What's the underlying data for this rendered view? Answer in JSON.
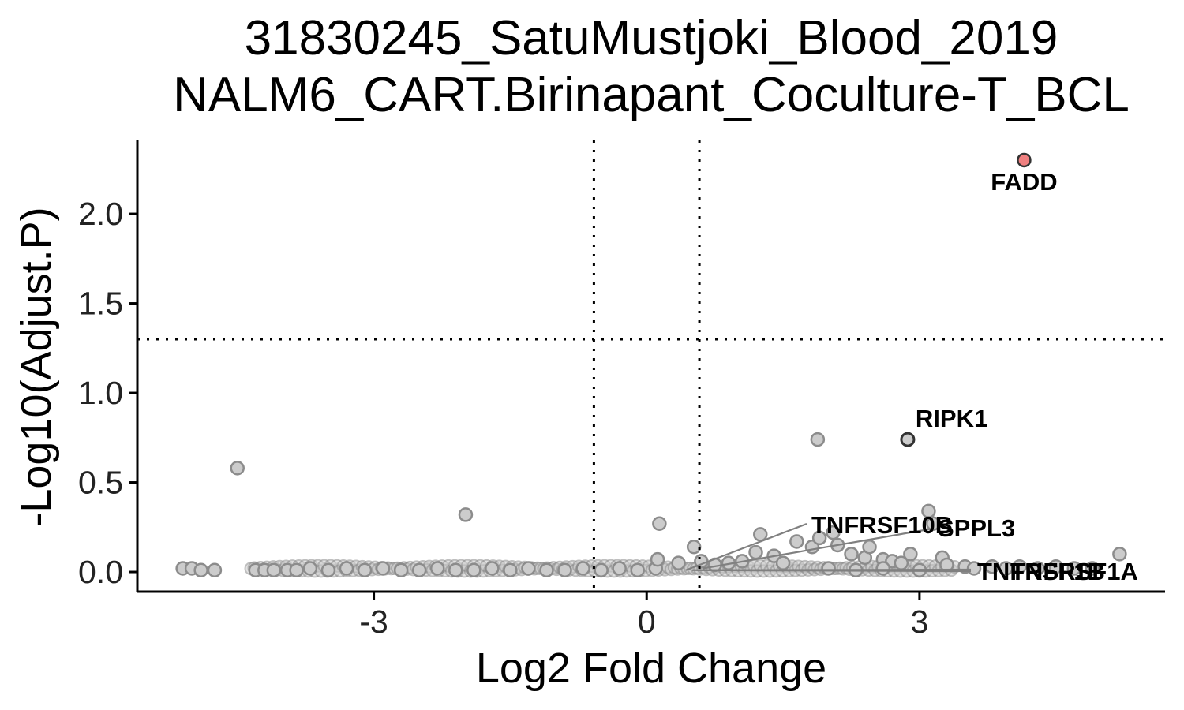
{
  "chart_data": {
    "type": "scatter",
    "title_lines": [
      "31830245_SatuMustjoki_Blood_2019",
      "NALM6_CART.Birinapant_Coculture-T_BCL"
    ],
    "xlabel": "Log2 Fold Change",
    "ylabel": "-Log10(Adjust.P)",
    "xlim": [
      -5.6,
      5.7
    ],
    "ylim": [
      -0.11,
      2.41
    ],
    "x_ticks": [
      -3,
      0,
      3
    ],
    "x_tick_labels": [
      "-3",
      "0",
      "3"
    ],
    "y_ticks": [
      0.0,
      0.5,
      1.0,
      1.5,
      2.0
    ],
    "y_tick_labels": [
      "0.0",
      "0.5",
      "1.0",
      "1.5",
      "2.0"
    ],
    "thresholds": {
      "x": [
        -0.58,
        0.58
      ],
      "y": 1.3
    },
    "grid": false,
    "colors": {
      "significant": "#f08080",
      "highlighted_outline": "#333333",
      "background_fill": "#cccccc",
      "background_outline": "#8c8c8c",
      "threshold_line": "#000000",
      "connector": "#808080"
    },
    "points": [
      [
        -5.1,
        0.02
      ],
      [
        -5.0,
        0.02
      ],
      [
        -4.9,
        0.01
      ],
      [
        -4.75,
        0.01
      ],
      [
        -4.5,
        0.58
      ],
      [
        -4.3,
        0.01
      ],
      [
        -4.2,
        0.01
      ],
      [
        -4.1,
        0.01
      ],
      [
        -3.95,
        0.01
      ],
      [
        -3.85,
        0.01
      ],
      [
        -3.7,
        0.02
      ],
      [
        -3.5,
        0.01
      ],
      [
        -3.3,
        0.02
      ],
      [
        -3.1,
        0.01
      ],
      [
        -2.9,
        0.02
      ],
      [
        -2.7,
        0.01
      ],
      [
        -2.5,
        0.01
      ],
      [
        -2.3,
        0.02
      ],
      [
        -2.1,
        0.01
      ],
      [
        -1.99,
        0.32
      ],
      [
        -1.9,
        0.01
      ],
      [
        -1.7,
        0.02
      ],
      [
        -1.5,
        0.01
      ],
      [
        -1.3,
        0.02
      ],
      [
        -1.1,
        0.01
      ],
      [
        -0.9,
        0.01
      ],
      [
        -0.7,
        0.02
      ],
      [
        -0.5,
        0.01
      ],
      [
        -0.3,
        0.02
      ],
      [
        -0.1,
        0.01
      ],
      [
        0.1,
        0.02
      ],
      [
        0.14,
        0.27
      ],
      [
        0.12,
        0.07
      ],
      [
        0.35,
        0.05
      ],
      [
        0.52,
        0.14
      ],
      [
        0.6,
        0.06
      ],
      [
        0.75,
        0.04
      ],
      [
        0.9,
        0.05
      ],
      [
        1.05,
        0.06
      ],
      [
        1.2,
        0.11
      ],
      [
        1.25,
        0.21
      ],
      [
        1.4,
        0.09
      ],
      [
        1.5,
        0.05
      ],
      [
        1.65,
        0.17
      ],
      [
        1.82,
        0.14
      ],
      [
        1.9,
        0.19
      ],
      [
        2.05,
        0.22
      ],
      [
        2.1,
        0.15
      ],
      [
        2.25,
        0.1
      ],
      [
        2.4,
        0.08
      ],
      [
        2.45,
        0.14
      ],
      [
        2.6,
        0.07
      ],
      [
        2.7,
        0.06
      ],
      [
        2.8,
        0.05
      ],
      [
        1.88,
        0.74
      ],
      [
        2.9,
        0.1
      ],
      [
        3.1,
        0.34
      ],
      [
        3.15,
        0.27
      ],
      [
        3.25,
        0.08
      ],
      [
        3.3,
        0.04
      ],
      [
        3.5,
        0.03
      ],
      [
        3.6,
        0.02
      ],
      [
        3.8,
        0.03
      ],
      [
        3.95,
        0.02
      ],
      [
        4.1,
        0.03
      ],
      [
        4.3,
        0.02
      ],
      [
        4.5,
        0.03
      ],
      [
        4.7,
        0.02
      ],
      [
        4.9,
        0.02
      ],
      [
        5.2,
        0.1
      ],
      [
        2.0,
        0.02
      ],
      [
        2.3,
        0.01
      ],
      [
        2.6,
        0.02
      ],
      [
        3.0,
        0.01
      ]
    ],
    "labeled_points": [
      {
        "label": "FADD",
        "x": 4.15,
        "y": 2.3,
        "significant": true
      },
      {
        "label": "RIPK1",
        "x": 2.87,
        "y": 0.74,
        "significant": false
      },
      {
        "label": "TNFRSF10B",
        "x": 0.43,
        "y": 0.01,
        "significant": false
      },
      {
        "label": "SPPL3",
        "x": 0.62,
        "y": 0.02,
        "significant": false
      },
      {
        "label": "TNFRSF1A",
        "x": 0.55,
        "y": 0.01,
        "significant": false
      },
      {
        "label": "TNFRSF1B",
        "x": 0.5,
        "y": 0.01,
        "significant": false
      }
    ]
  }
}
